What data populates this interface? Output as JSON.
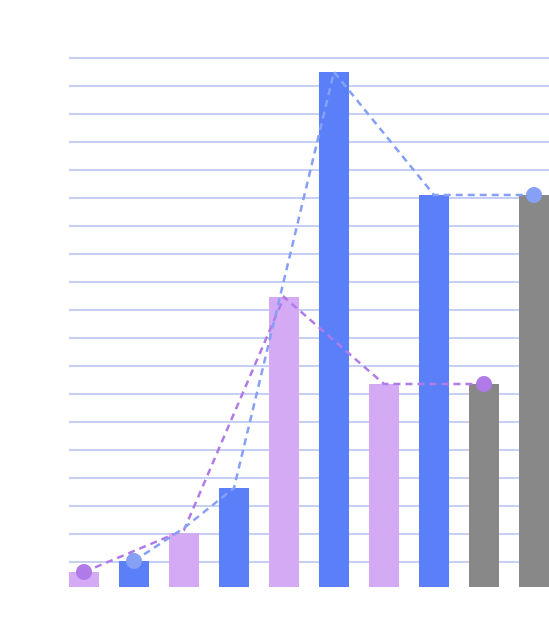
{
  "chart_data": {
    "type": "bar",
    "categories": [
      null,
      null,
      null,
      null,
      null,
      null,
      null,
      null,
      null,
      null
    ],
    "values": [
      15,
      26,
      54,
      99,
      290,
      515,
      203,
      392,
      203,
      392
    ],
    "colors": [
      "#d4aaf5",
      "#5b7ff9",
      "#d4aaf5",
      "#5b7ff9",
      "#d4aaf5",
      "#5b7ff9",
      "#d4aaf5",
      "#5b7ff9",
      "#888888",
      "#888888"
    ],
    "lines": [
      {
        "color": "#b07ae8",
        "x": [
          0,
          2,
          4,
          6,
          8
        ],
        "values": [
          15,
          57,
          290,
          203,
          203
        ]
      },
      {
        "color": "#86a0f5",
        "x": [
          1,
          2,
          3,
          5,
          7,
          9
        ],
        "values": [
          26,
          59,
          99,
          515,
          392,
          392
        ]
      }
    ],
    "ylim": [
      0,
      530
    ],
    "yticks": [
      25,
      53,
      81,
      109,
      137,
      165,
      193,
      221,
      249,
      277,
      305,
      333,
      361,
      389,
      417,
      445,
      473,
      501,
      529
    ],
    "grid": true
  }
}
